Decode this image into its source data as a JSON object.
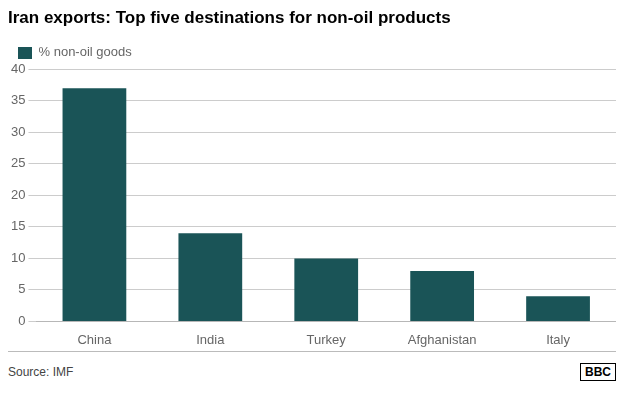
{
  "chart_data": {
    "type": "bar",
    "title": "Iran exports: Top five destinations for non-oil products",
    "categories": [
      "China",
      "India",
      "Turkey",
      "Afghanistan",
      "Italy"
    ],
    "series": [
      {
        "name": "% non-oil goods",
        "color": "#1a5457",
        "values": [
          37,
          14,
          10,
          8,
          4
        ]
      }
    ],
    "ylim": [
      0,
      40
    ],
    "yticks": [
      0,
      5,
      10,
      15,
      20,
      25,
      30,
      35,
      40
    ],
    "grid": true,
    "legend": "upper left",
    "annotations": [
      "Source: IMF",
      "BBC"
    ]
  }
}
